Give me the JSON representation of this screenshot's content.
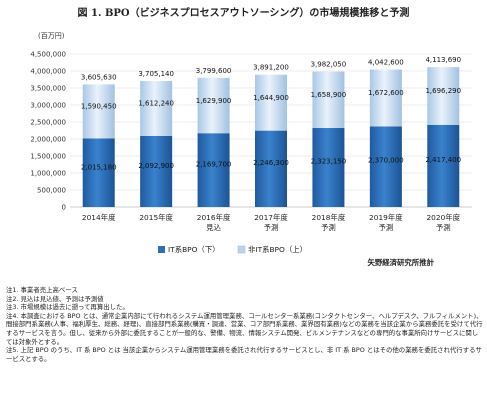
{
  "title": "図 1. BPO（ビジネスプロセスアウトソーシング）の市場規模推移と予測",
  "chart_data": {
    "type": "bar",
    "stacked": true,
    "unit_label": "(百万円)",
    "categories": [
      [
        "2014年度"
      ],
      [
        "2015年度"
      ],
      [
        "2016年度",
        "見込"
      ],
      [
        "2017年度",
        "予測"
      ],
      [
        "2018年度",
        "予測"
      ],
      [
        "2019年度",
        "予測"
      ],
      [
        "2020年度",
        "予測"
      ]
    ],
    "series": [
      {
        "name": "IT系BPO（下）",
        "color": "#2e6fb8",
        "values": [
          2015180,
          2092900,
          2169700,
          2246300,
          2323150,
          2370000,
          2417400
        ],
        "labels": [
          "2,015,180",
          "2,092,900",
          "2,169,700",
          "2,246,300",
          "2,323,150",
          "2,370,000",
          "2,417,400"
        ]
      },
      {
        "name": "非IT系BPO（上）",
        "color": "#bcd5ec",
        "values": [
          1590450,
          1612240,
          1629900,
          1644900,
          1658900,
          1672600,
          1696290
        ],
        "labels": [
          "1,590,450",
          "1,612,240",
          "1,629,900",
          "1,644,900",
          "1,658,900",
          "1,672,600",
          "1,696,290"
        ]
      }
    ],
    "totals": [
      3605630,
      3705140,
      3799600,
      3891200,
      3982050,
      4042600,
      4113690
    ],
    "total_labels": [
      "3,605,630",
      "3,705,140",
      "3,799,600",
      "3,891,200",
      "3,982,050",
      "4,042,600",
      "4,113,690"
    ],
    "yticks": [
      "0",
      "500,000",
      "1,000,000",
      "1,500,000",
      "2,000,000",
      "2,500,000",
      "3,000,000",
      "3,500,000",
      "4,000,000",
      "4,500,000"
    ],
    "ylim": [
      0,
      4500000
    ],
    "grid": true,
    "legend_position": "bottom",
    "source": "矢野経済研究所推計"
  },
  "notes": [
    "注1. 事業者売上高ベース",
    "注2. 見込は見込値、予測は予測値",
    "注3. 市場規模は過去に遡って再算出した。",
    "注4. 本調査における BPO とは、通常企業内部にて行われるシステム運用管理業務、コールセンター系業務(コンタクトセンター、ヘルプデスク、フルフィルメント)、間接部門系業務(人事、福利厚生、総務、経理)、直接部門系業務(購買・調達、営業、コア部門系業務、業界固有業務)などの業務を当該企業から業務委託を受けて代行するサービスを言う。但し、従来から外部に委託することが一般的な、警備、物流、情報システム開発、ビルメンテナンスなどの専門的な事業所向けサービスに関しては対象外とする。",
    "注5. 上記 BPO のうち、IT 系 BPO とは 当該企業からシステム運用管理業務を委託され代行するサービスとし、非 IT 系 BPO とはその他の業務を委託され代行するサービスとする。"
  ]
}
